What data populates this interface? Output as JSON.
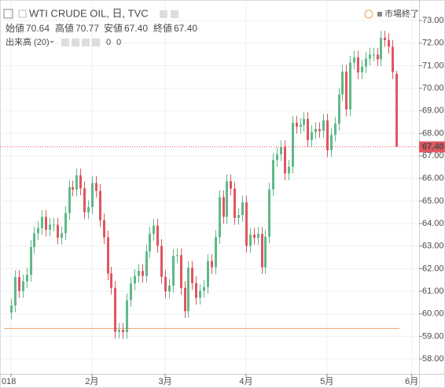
{
  "chart_data": {
    "type": "candlestick",
    "title": "WTI CRUDE OIL, 日, TVC",
    "market_status": "市場終了",
    "header": {
      "labels": [
        "始値",
        "高値",
        "安値",
        "終値"
      ],
      "value_labels": [
        "70.64",
        "70.77",
        "67.40",
        "67.40"
      ]
    },
    "volume_indicator": {
      "label": "出来高 (20)",
      "values": [
        0,
        0
      ]
    },
    "last_price_label": "67.40",
    "up_color": "#5fb98a",
    "down_color": "#e0565f",
    "hline": 59.35,
    "hline_color": "#f0a070",
    "ylim": [
      57.34,
      73.91
    ],
    "yticks": [
      {
        "value": 58,
        "label": "58.00"
      },
      {
        "value": 59,
        "label": "59.00"
      },
      {
        "value": 60,
        "label": "60.00"
      },
      {
        "value": 61,
        "label": "61.00"
      },
      {
        "value": 62,
        "label": "62.00"
      },
      {
        "value": 63,
        "label": "63.00"
      },
      {
        "value": 64,
        "label": "64.00"
      },
      {
        "value": 65,
        "label": "65.00"
      },
      {
        "value": 66,
        "label": "66.00"
      },
      {
        "value": 67,
        "label": "67.00"
      },
      {
        "value": 68,
        "label": "68.00"
      },
      {
        "value": 69,
        "label": "69.00"
      },
      {
        "value": 70,
        "label": "70.00"
      },
      {
        "value": 71,
        "label": "71.00"
      },
      {
        "value": 72,
        "label": "72.00"
      },
      {
        "value": 73,
        "label": "73.00"
      }
    ],
    "xlim": [
      -2.86,
      105.9
    ],
    "xticks": [
      {
        "value": 0,
        "label": "018"
      },
      {
        "value": 21,
        "label": "2月"
      },
      {
        "value": 40,
        "label": "3月"
      },
      {
        "value": 61,
        "label": "4月"
      },
      {
        "value": 82,
        "label": "5月"
      },
      {
        "value": 104,
        "label": "6月"
      }
    ],
    "grid": true,
    "open": [
      60.05,
      60.37,
      61.63,
      61.01,
      61.44,
      61.73,
      62.96,
      63.57,
      63.8,
      64.3,
      63.73,
      63.95,
      63.95,
      63.37,
      63.57,
      64.47,
      65.61,
      65.51,
      66.14,
      65.56,
      64.5,
      64.73,
      65.8,
      65.45,
      64.15,
      63.39,
      61.79,
      61.15,
      59.2,
      59.29,
      59.19,
      60.6,
      61.34,
      61.68,
      61.9,
      61.68,
      62.77,
      63.55,
      63.91,
      63.01,
      61.64,
      60.99,
      61.25,
      62.57,
      62.6,
      61.15,
      60.12,
      62.04,
      61.36,
      60.71,
      61.02,
      61.19,
      62.34,
      62.06,
      63.4,
      65.17,
      64.3,
      65.88,
      65.55,
      64.25,
      64.38,
      64.94,
      63.01,
      63.51,
      63.37,
      63.54,
      62.06,
      63.42,
      65.51,
      66.82,
      67.07,
      67.39,
      66.22,
      66.52,
      68.47,
      68.29,
      68.38,
      68.64,
      67.7,
      68.05,
      68.19,
      68.1,
      68.57,
      67.25,
      67.93,
      68.43,
      69.72,
      70.73,
      69.06,
      71.14,
      71.36,
      70.7,
      70.96,
      71.31,
      71.49,
      71.49,
      71.28,
      72.24,
      72.13,
      71.84,
      70.64
    ],
    "high": [
      60.67,
      61.93,
      61.93,
      61.74,
      62.03,
      63.26,
      63.87,
      64.1,
      64.6,
      64.6,
      64.25,
      64.25,
      64.25,
      63.87,
      64.77,
      65.91,
      65.91,
      66.44,
      66.44,
      65.86,
      65.03,
      66.1,
      66.1,
      65.75,
      64.45,
      63.69,
      62.09,
      61.45,
      59.59,
      59.59,
      60.9,
      61.64,
      61.98,
      62.2,
      62.2,
      63.07,
      63.85,
      64.21,
      64.21,
      63.31,
      61.94,
      61.55,
      62.87,
      62.9,
      62.9,
      61.45,
      62.34,
      62.34,
      61.66,
      61.32,
      61.49,
      62.64,
      62.64,
      63.7,
      65.47,
      65.47,
      66.18,
      66.18,
      65.85,
      64.68,
      65.24,
      65.24,
      63.81,
      63.81,
      63.84,
      63.84,
      63.72,
      65.81,
      67.12,
      67.37,
      67.69,
      67.69,
      66.82,
      68.77,
      68.77,
      68.68,
      68.94,
      68.94,
      68.35,
      68.49,
      68.49,
      68.87,
      68.87,
      68.23,
      68.73,
      70.02,
      71.03,
      71.03,
      71.44,
      71.66,
      71.66,
      71.26,
      71.61,
      71.79,
      71.79,
      71.79,
      72.54,
      72.54,
      72.43,
      72.14,
      70.77
    ],
    "low": [
      59.75,
      60.07,
      60.71,
      60.71,
      61.14,
      61.43,
      62.66,
      63.27,
      63.5,
      63.43,
      63.43,
      63.65,
      63.07,
      63.07,
      63.27,
      64.17,
      65.21,
      65.21,
      65.26,
      64.2,
      64.2,
      64.43,
      65.15,
      63.85,
      63.09,
      61.49,
      60.85,
      58.9,
      58.9,
      58.89,
      58.89,
      60.3,
      61.04,
      61.38,
      61.38,
      61.38,
      62.47,
      63.25,
      62.71,
      61.34,
      60.69,
      60.69,
      60.95,
      62.27,
      60.85,
      59.82,
      59.82,
      61.06,
      60.41,
      60.41,
      60.72,
      60.89,
      61.76,
      61.76,
      63.1,
      64.0,
      64.0,
      65.25,
      63.95,
      63.95,
      64.08,
      62.71,
      62.71,
      63.07,
      63.07,
      61.76,
      61.76,
      63.12,
      65.21,
      66.52,
      66.77,
      65.92,
      65.92,
      66.22,
      67.99,
      67.99,
      68.08,
      67.4,
      67.4,
      67.75,
      67.8,
      67.8,
      66.95,
      66.95,
      67.63,
      68.13,
      69.42,
      68.76,
      68.76,
      70.84,
      70.4,
      70.4,
      70.66,
      71.01,
      71.19,
      70.98,
      70.98,
      71.83,
      71.54,
      70.41,
      67.4
    ],
    "close": [
      60.37,
      61.63,
      61.01,
      61.44,
      61.73,
      62.96,
      63.57,
      63.8,
      64.3,
      63.73,
      63.95,
      63.95,
      63.37,
      63.57,
      64.47,
      65.61,
      65.51,
      66.14,
      65.56,
      64.5,
      64.73,
      65.8,
      65.45,
      64.15,
      63.39,
      61.79,
      61.15,
      59.2,
      59.29,
      59.19,
      60.6,
      61.34,
      61.68,
      61.9,
      61.68,
      62.77,
      63.55,
      63.91,
      63.01,
      61.64,
      60.99,
      61.25,
      62.57,
      62.6,
      61.15,
      60.12,
      62.04,
      61.36,
      60.71,
      61.02,
      61.19,
      62.34,
      62.06,
      63.4,
      65.17,
      64.3,
      65.88,
      65.55,
      64.25,
      64.38,
      64.94,
      63.01,
      63.51,
      63.37,
      63.54,
      62.06,
      63.42,
      65.51,
      66.82,
      67.07,
      67.39,
      66.22,
      66.52,
      68.47,
      68.29,
      68.38,
      68.64,
      67.7,
      68.05,
      68.19,
      68.1,
      68.57,
      67.25,
      67.93,
      68.43,
      69.72,
      70.73,
      69.06,
      71.14,
      71.36,
      70.7,
      70.96,
      71.31,
      71.49,
      71.49,
      71.28,
      72.24,
      72.13,
      71.84,
      70.71,
      67.4
    ]
  }
}
